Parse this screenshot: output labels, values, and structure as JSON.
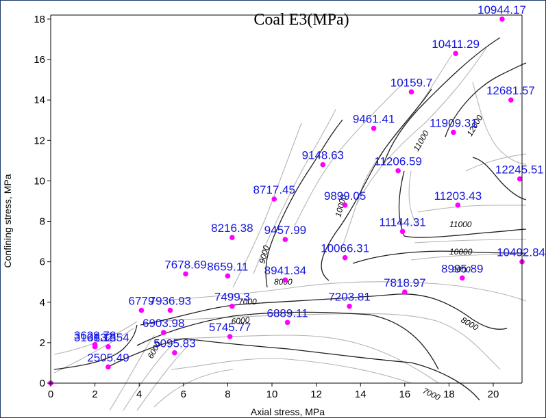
{
  "chart_data": {
    "type": "scatter",
    "title": "Coal E3(MPa)",
    "xlabel": "Axial stress, MPa",
    "ylabel": "Confining stress, MPa",
    "xlim": [
      0,
      21.3
    ],
    "ylim": [
      0,
      18.2
    ],
    "x_ticks": [
      "0",
      "2",
      "4",
      "6",
      "8",
      "10",
      "12",
      "14",
      "16",
      "18",
      "20"
    ],
    "y_ticks": [
      "0",
      "2",
      "4",
      "6",
      "8",
      "10",
      "12",
      "14",
      "16",
      "18"
    ],
    "grid": false,
    "marker_color": "#ff00ff",
    "label_color": "#1515e0",
    "points": [
      {
        "x": 0.0,
        "y": 0.0,
        "label": ""
      },
      {
        "x": 2.6,
        "y": 0.8,
        "label": "2505.49"
      },
      {
        "x": 2.0,
        "y": 1.8,
        "label": "3101.13"
      },
      {
        "x": 2.6,
        "y": 1.8,
        "label": "3832.54"
      },
      {
        "x": 2.0,
        "y": 1.9,
        "label": "3628.78"
      },
      {
        "x": 5.6,
        "y": 1.5,
        "label": "5095.83"
      },
      {
        "x": 8.1,
        "y": 2.3,
        "label": "5745.77"
      },
      {
        "x": 5.1,
        "y": 2.5,
        "label": "6903.98"
      },
      {
        "x": 4.1,
        "y": 3.6,
        "label": "6779"
      },
      {
        "x": 5.4,
        "y": 3.6,
        "label": "7936.93"
      },
      {
        "x": 10.7,
        "y": 3.0,
        "label": "6889.11"
      },
      {
        "x": 8.2,
        "y": 3.8,
        "label": "7499.3"
      },
      {
        "x": 13.5,
        "y": 3.8,
        "label": "7203.81"
      },
      {
        "x": 16.0,
        "y": 4.5,
        "label": "7818.97"
      },
      {
        "x": 6.1,
        "y": 5.4,
        "label": "7678.69"
      },
      {
        "x": 8.0,
        "y": 5.3,
        "label": "8659.11"
      },
      {
        "x": 10.6,
        "y": 5.1,
        "label": "8941.34"
      },
      {
        "x": 18.6,
        "y": 5.2,
        "label": "8995.89"
      },
      {
        "x": 21.3,
        "y": 6.0,
        "label": "10492.84"
      },
      {
        "x": 8.2,
        "y": 7.2,
        "label": "8216.38"
      },
      {
        "x": 10.6,
        "y": 7.1,
        "label": "9457.99"
      },
      {
        "x": 13.3,
        "y": 6.2,
        "label": "10066.31"
      },
      {
        "x": 15.9,
        "y": 7.5,
        "label": "11144.31"
      },
      {
        "x": 18.4,
        "y": 8.8,
        "label": "11203.43"
      },
      {
        "x": 10.1,
        "y": 9.1,
        "label": "8717.45"
      },
      {
        "x": 13.3,
        "y": 8.8,
        "label": "9899.05"
      },
      {
        "x": 12.3,
        "y": 10.8,
        "label": "9148.63"
      },
      {
        "x": 15.7,
        "y": 10.5,
        "label": "11206.59"
      },
      {
        "x": 21.2,
        "y": 10.1,
        "label": "12245.51"
      },
      {
        "x": 14.6,
        "y": 12.6,
        "label": "9461.41"
      },
      {
        "x": 18.2,
        "y": 12.4,
        "label": "11909.31"
      },
      {
        "x": 20.8,
        "y": 14.0,
        "label": "12681.57"
      },
      {
        "x": 16.3,
        "y": 14.4,
        "label": "10159.7"
      },
      {
        "x": 18.3,
        "y": 16.3,
        "label": "10411.29"
      },
      {
        "x": 20.4,
        "y": 18.0,
        "label": "10944.17"
      }
    ],
    "contour_labels": [
      "6000",
      "7000",
      "8000",
      "9000",
      "10000",
      "11000",
      "12000"
    ]
  }
}
